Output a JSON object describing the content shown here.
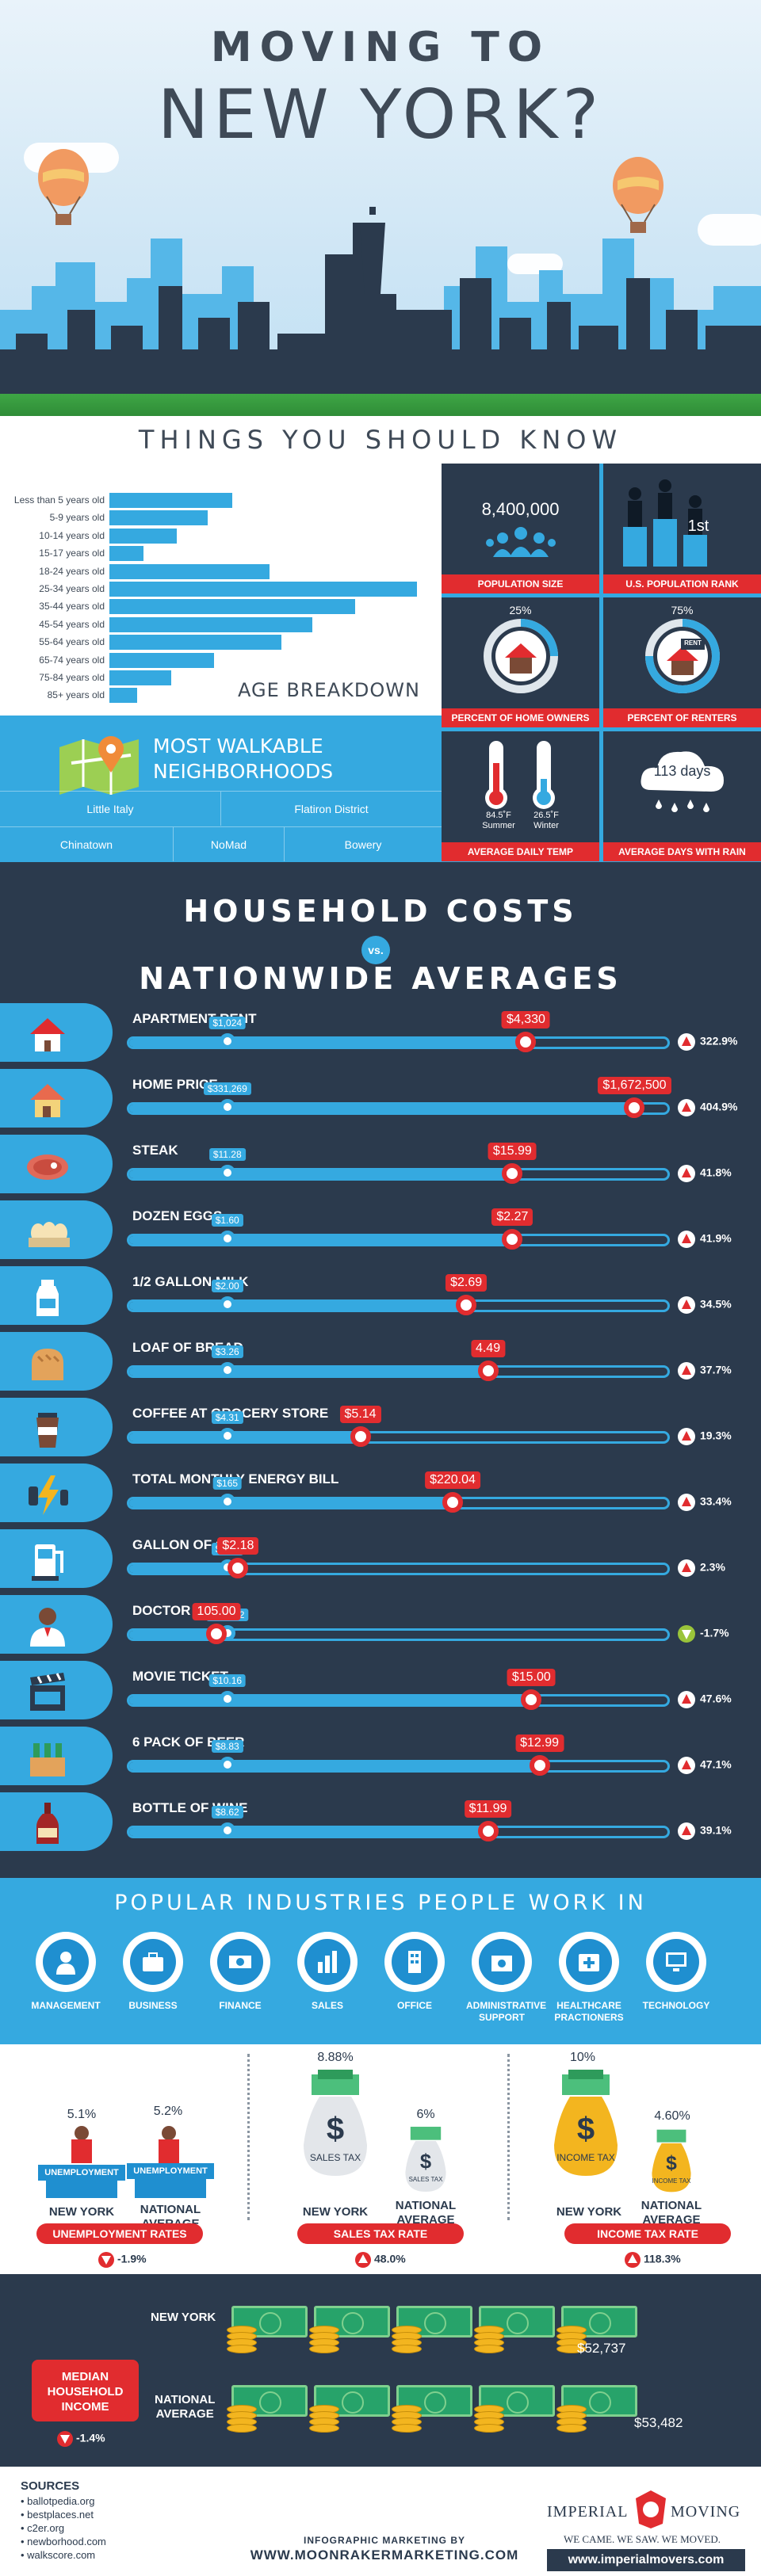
{
  "hero": {
    "title_line1": "MOVING TO",
    "title_line2": "NEW YORK?",
    "subtitle": "THINGS YOU SHOULD KNOW"
  },
  "age_breakdown": {
    "title": "AGE BREAKDOWN",
    "groups": [
      {
        "label": "Less than 5 years old",
        "value": 0.4
      },
      {
        "label": "5-9 years old",
        "value": 0.32
      },
      {
        "label": "10-14 years old",
        "value": 0.22
      },
      {
        "label": "15-17 years old",
        "value": 0.11
      },
      {
        "label": "18-24 years old",
        "value": 0.52
      },
      {
        "label": "25-34 years old",
        "value": 1.0
      },
      {
        "label": "35-44 years old",
        "value": 0.8
      },
      {
        "label": "45-54 years old",
        "value": 0.66
      },
      {
        "label": "55-64 years old",
        "value": 0.56
      },
      {
        "label": "65-74 years old",
        "value": 0.34
      },
      {
        "label": "75-84 years old",
        "value": 0.2
      },
      {
        "label": "85+ years old",
        "value": 0.09
      }
    ]
  },
  "walkable": {
    "title_line1": "MOST WALKABLE",
    "title_line2": "NEIGHBORHOODS",
    "row1": [
      "Little Italy",
      "Flatiron District"
    ],
    "row2": [
      "Chinatown",
      "NoMad",
      "Bowery"
    ]
  },
  "stats": {
    "population": {
      "value": "8,400,000",
      "label": "POPULATION SIZE"
    },
    "rank": {
      "value": "1st",
      "label": "U.S. POPULATION RANK"
    },
    "owners": {
      "value": "25%",
      "label": "PERCENT OF HOME OWNERS"
    },
    "renters": {
      "value": "75%",
      "label": "PERCENT OF RENTERS",
      "sign": "RENT"
    },
    "temp": {
      "summer": "84.5˚F",
      "summer_lbl": "Summer",
      "winter": "26.5˚F",
      "winter_lbl": "Winter",
      "label": "AVERAGE DAILY TEMP"
    },
    "rain": {
      "value": "113 days",
      "label": "AVERAGE DAYS WITH RAIN"
    }
  },
  "costs": {
    "title1": "HOUSEHOLD COSTS",
    "vs": "vs.",
    "title2": "NATIONWIDE AVERAGES",
    "items": [
      {
        "name": "APARTMENT RENT",
        "nat": "$1,024",
        "ny": "$4,330",
        "nat_pos": 0.185,
        "ny_pos": 0.735,
        "pct": "322.9%",
        "up": true,
        "icon": "house-rent-icon"
      },
      {
        "name": "HOME PRICE",
        "nat": "$331,269",
        "ny": "$1,672,500",
        "nat_pos": 0.185,
        "ny_pos": 0.935,
        "pct": "404.9%",
        "up": true,
        "icon": "house-price-icon"
      },
      {
        "name": "STEAK",
        "nat": "$11.28",
        "ny": "$15.99",
        "nat_pos": 0.185,
        "ny_pos": 0.71,
        "pct": "41.8%",
        "up": true,
        "icon": "steak-icon"
      },
      {
        "name": "DOZEN EGGS",
        "nat": "$1.60",
        "ny": "$2.27",
        "nat_pos": 0.185,
        "ny_pos": 0.71,
        "pct": "41.9%",
        "up": true,
        "icon": "eggs-icon"
      },
      {
        "name": "1/2 GALLON MILK",
        "nat": "$2.00",
        "ny": "$2.69",
        "nat_pos": 0.185,
        "ny_pos": 0.625,
        "pct": "34.5%",
        "up": true,
        "icon": "milk-icon"
      },
      {
        "name": "LOAF OF BREAD",
        "nat": "$3.26",
        "ny": "4.49",
        "nat_pos": 0.185,
        "ny_pos": 0.665,
        "pct": "37.7%",
        "up": true,
        "icon": "bread-icon"
      },
      {
        "name": "COFFEE AT GROCERY STORE",
        "nat": "$4.31",
        "ny": "$5.14",
        "nat_pos": 0.185,
        "ny_pos": 0.43,
        "pct": "19.3%",
        "up": true,
        "icon": "coffee-icon"
      },
      {
        "name": "TOTAL MONTHLY ENERGY BILL",
        "nat": "$165",
        "ny": "$220.04",
        "nat_pos": 0.185,
        "ny_pos": 0.6,
        "pct": "33.4%",
        "up": true,
        "icon": "energy-icon"
      },
      {
        "name": "GALLON OF GAS",
        "nat": "$2.13",
        "ny": "$2.18",
        "nat_pos": 0.185,
        "ny_pos": 0.205,
        "pct": "2.3%",
        "up": true,
        "icon": "gas-pump-icon"
      },
      {
        "name": "DOCTOR VISIT",
        "nat": "$106.82",
        "ny": "105.00",
        "nat_pos": 0.185,
        "ny_pos": 0.165,
        "pct": "-1.7%",
        "up": false,
        "icon": "doctor-icon"
      },
      {
        "name": "MOVIE TICKET",
        "nat": "$10.16",
        "ny": "$15.00",
        "nat_pos": 0.185,
        "ny_pos": 0.745,
        "pct": "47.6%",
        "up": true,
        "icon": "clapperboard-icon"
      },
      {
        "name": "6 PACK OF BEER",
        "nat": "$8.83",
        "ny": "$12.99",
        "nat_pos": 0.185,
        "ny_pos": 0.76,
        "pct": "47.1%",
        "up": true,
        "icon": "beer-icon"
      },
      {
        "name": "BOTTLE OF WINE",
        "nat": "$8.62",
        "ny": "$11.99",
        "nat_pos": 0.185,
        "ny_pos": 0.665,
        "pct": "39.1%",
        "up": true,
        "icon": "wine-icon"
      }
    ]
  },
  "industries": {
    "title": "POPULAR INDUSTRIES PEOPLE WORK IN",
    "items": [
      {
        "label1": "MANAGEMENT",
        "label2": "",
        "icon": "manager-icon"
      },
      {
        "label1": "BUSINESS",
        "label2": "",
        "icon": "briefcase-icon"
      },
      {
        "label1": "FINANCE",
        "label2": "",
        "icon": "dollar-bill-icon"
      },
      {
        "label1": "SALES",
        "label2": "",
        "icon": "bar-chart-icon"
      },
      {
        "label1": "OFFICE",
        "label2": "",
        "icon": "building-icon"
      },
      {
        "label1": "ADMINISTRATIVE",
        "label2": "SUPPORT",
        "icon": "gear-folder-icon"
      },
      {
        "label1": "HEALTHCARE",
        "label2": "PRACTIONERS",
        "icon": "medical-cross-icon"
      },
      {
        "label1": "TECHNOLOGY",
        "label2": "",
        "icon": "computer-icon"
      }
    ]
  },
  "taxes": {
    "unemployment": {
      "ny_pct": "5.1%",
      "nat_pct": "5.2%",
      "sign": "UNEMPLOYMENT",
      "ny_label": "NEW YORK",
      "nat_label1": "NATIONAL",
      "nat_label2": "AVERAGE",
      "banner": "UNEMPLOYMENT RATES",
      "delta": "-1.9%"
    },
    "sales": {
      "ny_pct": "8.88%",
      "nat_pct": "6%",
      "bag": "SALES TAX",
      "bag_small": "SALES TAX",
      "ny_label": "NEW YORK",
      "nat_label1": "NATIONAL",
      "nat_label2": "AVERAGE",
      "banner": "SALES TAX RATE",
      "delta": "48.0%"
    },
    "income": {
      "ny_pct": "10%",
      "nat_pct": "4.60%",
      "bag": "INCOME TAX",
      "bag_small": "INCOME TAX",
      "ny_label": "NEW YORK",
      "nat_label1": "NATIONAL",
      "nat_label2": "AVERAGE",
      "banner": "INCOME TAX RATE",
      "delta": "118.3%"
    }
  },
  "income": {
    "badge_line1": "MEDIAN",
    "badge_line2": "HOUSEHOLD",
    "badge_line3": "INCOME",
    "delta": "-1.4%",
    "ny_label": "NEW YORK",
    "ny_value": "$52,737",
    "nat_label1": "NATIONAL",
    "nat_label2": "AVERAGE",
    "nat_value": "$53,482"
  },
  "footer": {
    "sources_title": "SOURCES",
    "sources": [
      "• ballotpedia.org",
      "• bestplaces.net",
      "• c2er.org",
      "• newborhood.com",
      "• walkscore.com"
    ],
    "mid_line": "INFOGRAPHIC MARKETING BY",
    "mid_url": "WWW.MOONRAKERMARKETING.COM",
    "logo_left": "IMPERIAL",
    "logo_right": "MOVING",
    "tagline": "WE CAME. WE SAW. WE MOVED.",
    "url": "www.imperialmovers.com"
  }
}
